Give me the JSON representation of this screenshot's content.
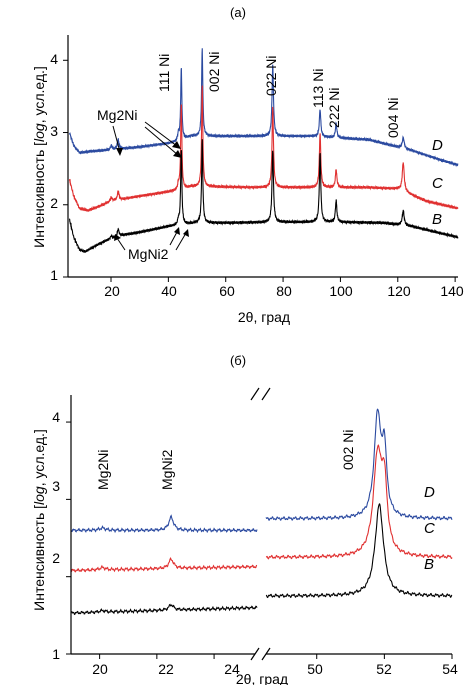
{
  "colors": {
    "B": "#000000",
    "C": "#e03030",
    "D": "#2b4aa0"
  },
  "panels": [
    {
      "label": "(a)",
      "xlabel": "2θ, град",
      "ylabel_pre": "Интенсивность [",
      "ylabel_log": "log",
      "ylabel_post": ", усл.ед.]",
      "xlim": [
        5,
        141
      ],
      "ylim": [
        1,
        4.35
      ],
      "xticks": [
        "20",
        "40",
        "60",
        "80",
        "100",
        "120",
        "140"
      ],
      "yticks": [
        "1",
        "2",
        "3",
        "4"
      ],
      "curve_labels": [
        "D",
        "C",
        "B"
      ],
      "peak_labels": [
        "111 Ni",
        "002 Ni",
        "022 Ni",
        "113 Ni",
        "222 Ni",
        "004 Ni"
      ],
      "phase_labels": [
        "Mg2Ni",
        "MgNi2"
      ]
    },
    {
      "label": "(б)",
      "xlabel": "2θ, град",
      "ylabel_pre": "Интенсивность [",
      "ylabel_log": "log",
      "ylabel_post": ", усл.ед.]",
      "ylim": [
        1,
        4.35
      ],
      "xticks_left": [
        "20",
        "22",
        "24"
      ],
      "xticks_right": [
        "50",
        "52",
        "54"
      ],
      "yticks": [
        "1",
        "2",
        "3",
        "4"
      ],
      "curve_labels": [
        "D",
        "C",
        "B"
      ],
      "peak_labels": [
        "002 Ni"
      ],
      "phase_labels": [
        "Mg2Ni",
        "MgNi2"
      ]
    }
  ],
  "chart_data": [
    {
      "type": "line",
      "xlabel": "2θ, град",
      "ylabel": "Интенсивность [log, усл.ед.]",
      "xlim": [
        5,
        141
      ],
      "ylim": [
        1,
        4.35
      ],
      "series": [
        {
          "name": "D",
          "color": "#2b4aa0",
          "base": [
            [
              5.5,
              3.0
            ],
            [
              7,
              2.82
            ],
            [
              9,
              2.72
            ],
            [
              13,
              2.74
            ],
            [
              20,
              2.76
            ],
            [
              30,
              2.8
            ],
            [
              40,
              2.85
            ],
            [
              44,
              2.88
            ],
            [
              48,
              2.95
            ],
            [
              55,
              2.95
            ],
            [
              70,
              2.95
            ],
            [
              90,
              2.95
            ],
            [
              110,
              2.9
            ],
            [
              125,
              2.75
            ],
            [
              135,
              2.62
            ],
            [
              141,
              2.55
            ]
          ],
          "peaks": [
            [
              20.1,
              0.06,
              0.35
            ],
            [
              22.5,
              0.13,
              0.35
            ],
            [
              43.5,
              0.1,
              0.3
            ],
            [
              44.5,
              1.0,
              0.25
            ],
            [
              51.8,
              1.22,
              0.25
            ],
            [
              76.4,
              0.98,
              0.3
            ],
            [
              92.9,
              0.38,
              0.3
            ],
            [
              98.5,
              0.2,
              0.3
            ],
            [
              121.9,
              0.15,
              0.4
            ]
          ]
        },
        {
          "name": "C",
          "color": "#e03030",
          "base": [
            [
              5.5,
              2.35
            ],
            [
              7,
              2.12
            ],
            [
              9,
              1.95
            ],
            [
              12,
              1.92
            ],
            [
              16,
              1.98
            ],
            [
              20,
              2.05
            ],
            [
              30,
              2.12
            ],
            [
              40,
              2.18
            ],
            [
              44,
              2.2
            ],
            [
              48,
              2.25
            ],
            [
              55,
              2.25
            ],
            [
              70,
              2.24
            ],
            [
              90,
              2.24
            ],
            [
              110,
              2.24
            ],
            [
              120,
              2.22
            ],
            [
              130,
              2.05
            ],
            [
              141,
              1.95
            ]
          ],
          "peaks": [
            [
              20.1,
              0.05,
              0.35
            ],
            [
              22.5,
              0.12,
              0.35
            ],
            [
              43.5,
              0.08,
              0.3
            ],
            [
              44.5,
              1.2,
              0.25
            ],
            [
              51.8,
              1.4,
              0.25
            ],
            [
              76.4,
              1.1,
              0.3
            ],
            [
              92.9,
              0.75,
              0.3
            ],
            [
              98.5,
              0.25,
              0.3
            ],
            [
              121.9,
              0.4,
              0.4
            ]
          ]
        },
        {
          "name": "B",
          "color": "#000000",
          "base": [
            [
              5.5,
              1.8
            ],
            [
              7,
              1.55
            ],
            [
              9,
              1.38
            ],
            [
              11,
              1.35
            ],
            [
              14,
              1.42
            ],
            [
              18,
              1.5
            ],
            [
              24,
              1.58
            ],
            [
              30,
              1.62
            ],
            [
              40,
              1.7
            ],
            [
              44,
              1.72
            ],
            [
              50,
              1.75
            ],
            [
              60,
              1.75
            ],
            [
              80,
              1.76
            ],
            [
              100,
              1.76
            ],
            [
              115,
              1.75
            ],
            [
              125,
              1.7
            ],
            [
              141,
              1.55
            ]
          ],
          "peaks": [
            [
              20.1,
              0.04,
              0.35
            ],
            [
              22.5,
              0.1,
              0.35
            ],
            [
              43.5,
              0.07,
              0.3
            ],
            [
              44.5,
              1.05,
              0.25
            ],
            [
              51.8,
              1.15,
              0.25
            ],
            [
              76.4,
              1.0,
              0.3
            ],
            [
              92.9,
              0.95,
              0.3
            ],
            [
              98.5,
              0.3,
              0.3
            ],
            [
              121.9,
              0.2,
              0.4
            ]
          ]
        }
      ]
    },
    {
      "type": "line",
      "xlabel": "2θ, град",
      "ylabel": "Интенсивность [log, усл.ед.]",
      "ylim": [
        1,
        4.35
      ],
      "x_segments": [
        [
          19,
          25.5
        ],
        [
          48.5,
          54
        ]
      ],
      "series": [
        {
          "name": "D",
          "color": "#2b4aa0",
          "base": [
            [
              19,
              2.6
            ],
            [
              25.5,
              2.6
            ]
          ],
          "base_right": [
            [
              48.5,
              2.75
            ],
            [
              54,
              2.75
            ]
          ],
          "peaks": [
            [
              20.1,
              0.03,
              0.12
            ],
            [
              22.5,
              0.17,
              0.1
            ],
            [
              51.8,
              1.32,
              0.12
            ],
            [
              52.0,
              0.8,
              0.08
            ]
          ]
        },
        {
          "name": "C",
          "color": "#e03030",
          "base": [
            [
              19,
              2.08
            ],
            [
              25.5,
              2.13
            ]
          ],
          "base_right": [
            [
              48.5,
              2.25
            ],
            [
              54,
              2.25
            ]
          ],
          "peaks": [
            [
              20.1,
              0.03,
              0.12
            ],
            [
              22.5,
              0.12,
              0.1
            ],
            [
              51.8,
              1.28,
              0.15
            ],
            [
              52.0,
              0.8,
              0.1
            ]
          ]
        },
        {
          "name": "B",
          "color": "#000000",
          "base": [
            [
              19,
              1.53
            ],
            [
              25.5,
              1.6
            ]
          ],
          "base_right": [
            [
              48.5,
              1.75
            ],
            [
              54,
              1.75
            ]
          ],
          "peaks": [
            [
              20.1,
              0.02,
              0.12
            ],
            [
              22.5,
              0.07,
              0.1
            ],
            [
              51.85,
              1.18,
              0.15
            ]
          ]
        }
      ]
    }
  ]
}
